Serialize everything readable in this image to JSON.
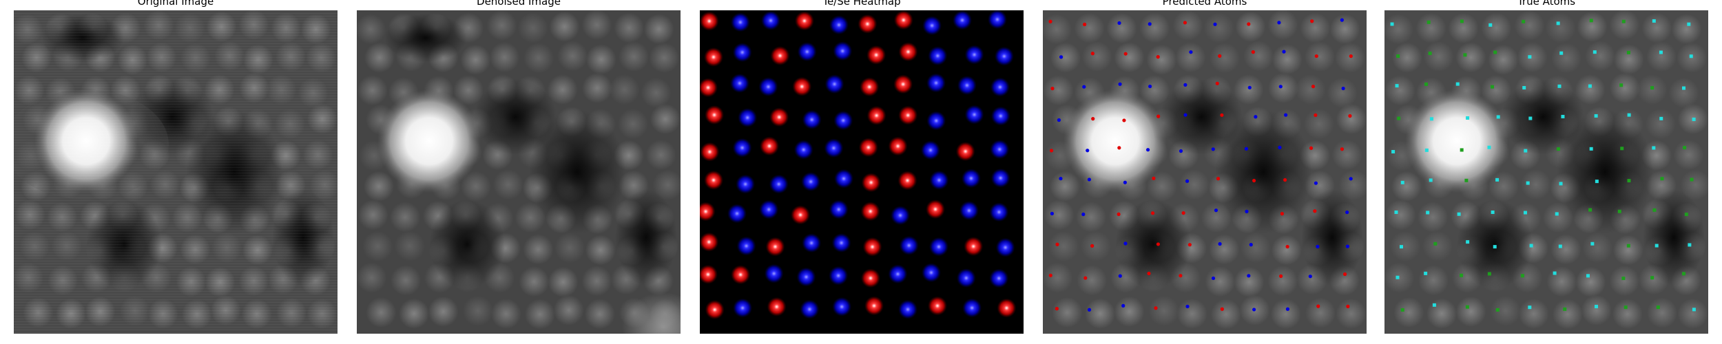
{
  "figure": {
    "panels": [
      {
        "id": "original",
        "title": "Original Image",
        "kind": "grayscale-micrograph"
      },
      {
        "id": "denoised",
        "title": "Denoised Image",
        "kind": "grayscale-micrograph-smooth"
      },
      {
        "id": "heatmap",
        "title": "Te/Se Heatmap",
        "kind": "element-heatmap",
        "colors": {
          "Te": "#ff1a1a",
          "Se": "#1a1aff"
        }
      },
      {
        "id": "predicted",
        "title": "Predicted Atoms",
        "kind": "atom-overlay",
        "marker_colors": [
          "#e00000",
          "#0000e0"
        ]
      },
      {
        "id": "true",
        "title": "True Atoms",
        "kind": "atom-overlay",
        "marker_colors": [
          "#1f9e1f",
          "#22dddd"
        ]
      }
    ]
  }
}
